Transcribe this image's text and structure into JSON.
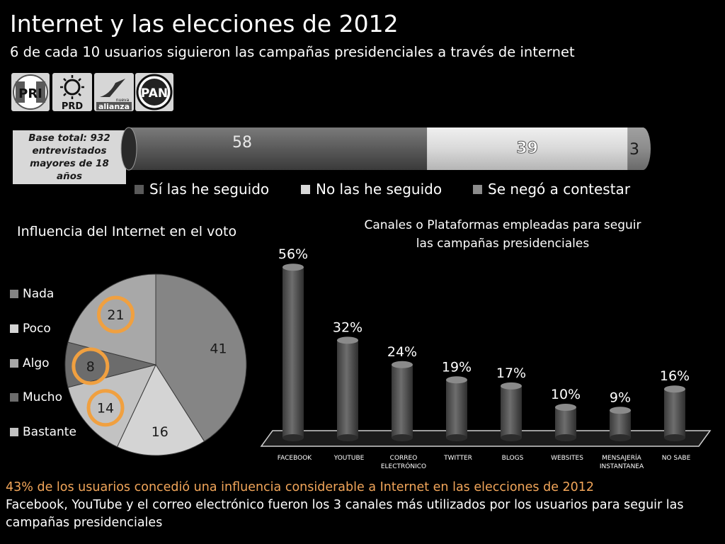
{
  "title": "Internet y las elecciones de 2012",
  "subtitle": "6 de cada 10 usuarios siguieron las campañas presidenciales a través de internet",
  "logos": [
    {
      "label": "PRI",
      "icon": "pri-logo"
    },
    {
      "label": "PRD",
      "icon": "prd-logo"
    },
    {
      "label": "alianza",
      "icon": "nueva-alianza-logo",
      "small": "nueva"
    },
    {
      "label": "PAN",
      "icon": "pan-logo"
    }
  ],
  "base_note": "Base total: 932 entrevistados mayores de 18 años",
  "footer": {
    "highlight": "43% de los usuarios concedió una influencia considerable a Internet en las elecciones de 2012",
    "body": "Facebook, YouTube y el correo electrónico fueron los 3 canales más utilizados por los usuarios para seguir las campañas presidenciales"
  },
  "colors": {
    "dark": "#5a5a5a",
    "light": "#d9d9d9",
    "mid": "#8c8c8c",
    "highlight": "#f2a65a",
    "circle": "#f0a040"
  },
  "chart_data": [
    {
      "type": "bar",
      "orientation": "horizontal-stacked",
      "series": [
        {
          "name": "Sí las he seguido",
          "values": [
            58
          ],
          "labels": [
            "58"
          ],
          "color": "#5a5a5a"
        },
        {
          "name": "No las he seguido",
          "values": [
            39
          ],
          "labels": [
            "39"
          ],
          "color": "#d9d9d9"
        },
        {
          "name": "Se negó a contestar",
          "values": [
            3
          ],
          "labels": [
            "3"
          ],
          "color": "#8c8c8c"
        }
      ],
      "legend": "bottom"
    },
    {
      "type": "pie",
      "title": "Influencia del Internet en el voto",
      "categories": [
        "Nada",
        "Poco",
        "Algo",
        "Mucho",
        "Bastante"
      ],
      "values": [
        41,
        16,
        14,
        8,
        21
      ],
      "labels": [
        "41",
        "16",
        "14",
        "8",
        "21"
      ],
      "legend": [
        "Nada",
        "Poco",
        "Algo",
        "Mucho",
        "Bastante"
      ],
      "legend_position": "left",
      "highlighted": [
        "21",
        "8",
        "14"
      ]
    },
    {
      "type": "bar",
      "title": "Canales o Plataformas empleadas para seguir las campañas presidenciales",
      "categories": [
        "FACEBOOK",
        "YOUTUBE",
        "CORREO ELECTRÓNICO",
        "TWITTER",
        "BLOGS",
        "WEBSITES",
        "MENSAJERÍA INSTANTANEA",
        "NO SABE"
      ],
      "category_lines": [
        [
          "FACEBOOK"
        ],
        [
          "YOUTUBE"
        ],
        [
          "CORREO",
          "ELECTRÓNICO"
        ],
        [
          "TWITTER"
        ],
        [
          "BLOGS"
        ],
        [
          "WEBSITES"
        ],
        [
          "MENSAJERÍA",
          "INSTANTANEA"
        ],
        [
          "NO SABE"
        ]
      ],
      "values": [
        56,
        32,
        24,
        19,
        17,
        10,
        9,
        16
      ],
      "labels": [
        "56%",
        "32%",
        "24%",
        "19%",
        "17%",
        "10%",
        "9%",
        "16%"
      ],
      "ylim": [
        0,
        60
      ]
    }
  ]
}
